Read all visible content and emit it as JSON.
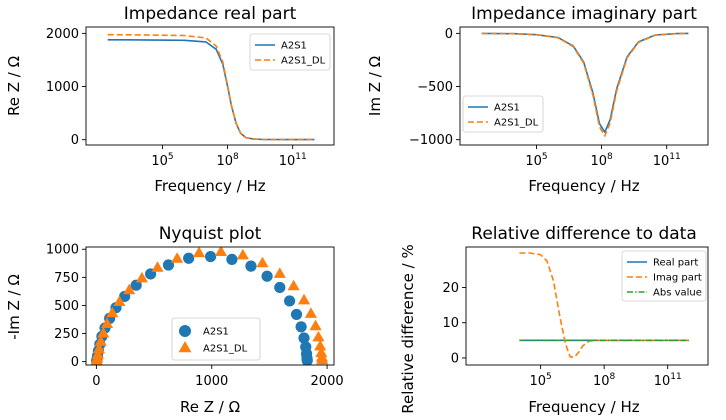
{
  "colors": {
    "blue": "#1f77b4",
    "orange": "#ff7f0e",
    "green": "#2ca02c"
  },
  "chart_data": [
    {
      "id": "real",
      "type": "line",
      "title": "Impedance real part",
      "xlabel": "Frequency / Hz",
      "ylabel": "Re Z / Ω",
      "xscale": "log",
      "xlim": [
        30,
        8000000000000.0
      ],
      "ylim": [
        -100,
        2120
      ],
      "xticks": [
        {
          "v": 100000.0,
          "base": "10",
          "exp": "5"
        },
        {
          "v": 100000000.0,
          "base": "10",
          "exp": "8"
        },
        {
          "v": 100000000000.0,
          "base": "10",
          "exp": "11"
        }
      ],
      "yticks": [
        {
          "v": 0,
          "label": "0"
        },
        {
          "v": 1000,
          "label": "1000"
        },
        {
          "v": 2000,
          "label": "2000"
        }
      ],
      "legend": {
        "position": "top-right",
        "entries": [
          "A2S1",
          "A2S1_DL"
        ]
      },
      "series": [
        {
          "name": "A2S1",
          "style": "solid",
          "color": "#1f77b4",
          "x": [
            300,
            10000.0,
            1000000.0,
            10000000.0,
            30000000.0,
            60000000.0,
            100000000.0,
            150000000.0,
            250000000.0,
            400000000.0,
            700000000.0,
            1500000000.0,
            5000000000.0,
            100000000000.0,
            1000000000000.0
          ],
          "y": [
            1880,
            1878,
            1870,
            1840,
            1700,
            1420,
            1000,
            640,
            300,
            120,
            40,
            12,
            3,
            1,
            1
          ]
        },
        {
          "name": "A2S1_DL",
          "style": "dashed",
          "color": "#ff7f0e",
          "x": [
            300,
            10000.0,
            1000000.0,
            10000000.0,
            30000000.0,
            60000000.0,
            100000000.0,
            150000000.0,
            250000000.0,
            400000000.0,
            700000000.0,
            1500000000.0,
            5000000000.0,
            100000000000.0,
            1000000000000.0
          ],
          "y": [
            1975,
            1972,
            1960,
            1915,
            1760,
            1460,
            1020,
            650,
            305,
            122,
            40,
            12,
            3,
            1,
            1
          ]
        }
      ]
    },
    {
      "id": "imag",
      "type": "line",
      "title": "Impedance imaginary part",
      "xlabel": "Frequency / Hz",
      "ylabel": "Im Z / Ω",
      "xscale": "log",
      "xlim": [
        30,
        8000000000000.0
      ],
      "ylim": [
        -1050,
        60
      ],
      "xticks": [
        {
          "v": 100000.0,
          "base": "10",
          "exp": "5"
        },
        {
          "v": 100000000.0,
          "base": "10",
          "exp": "8"
        },
        {
          "v": 100000000000.0,
          "base": "10",
          "exp": "11"
        }
      ],
      "yticks": [
        {
          "v": 0,
          "label": "0"
        },
        {
          "v": -500,
          "label": "−500"
        },
        {
          "v": -1000,
          "label": "−1000"
        }
      ],
      "legend": {
        "position": "lower-left",
        "entries": [
          "A2S1",
          "A2S1_DL"
        ]
      },
      "series": [
        {
          "name": "A2S1",
          "style": "solid",
          "color": "#1f77b4",
          "x": [
            300,
            10000.0,
            100000.0,
            1000000.0,
            5000000.0,
            15000000.0,
            40000000.0,
            80000000.0,
            140000000.0,
            250000000.0,
            500000000.0,
            1500000000.0,
            5000000000.0,
            30000000000.0,
            300000000000.0,
            1000000000000.0
          ],
          "y": [
            0,
            -3,
            -12,
            -40,
            -120,
            -270,
            -560,
            -850,
            -930,
            -810,
            -520,
            -220,
            -80,
            -15,
            -2,
            0
          ]
        },
        {
          "name": "A2S1_DL",
          "style": "dashed",
          "color": "#ff7f0e",
          "x": [
            300,
            10000.0,
            100000.0,
            1000000.0,
            5000000.0,
            15000000.0,
            40000000.0,
            80000000.0,
            140000000.0,
            250000000.0,
            500000000.0,
            1500000000.0,
            5000000000.0,
            30000000000.0,
            300000000000.0,
            1000000000000.0
          ],
          "y": [
            0,
            -3,
            -12,
            -42,
            -125,
            -280,
            -580,
            -880,
            -965,
            -840,
            -540,
            -230,
            -85,
            -16,
            -2,
            0
          ]
        }
      ]
    },
    {
      "id": "nyquist",
      "type": "scatter",
      "title": "Nyquist plot",
      "xlabel": "Re Z / Ω",
      "ylabel": "-Im Z / Ω",
      "xlim": [
        -90,
        2060
      ],
      "ylim": [
        -30,
        1020
      ],
      "xticks": [
        {
          "v": 0,
          "label": "0"
        },
        {
          "v": 1000,
          "label": "1000"
        },
        {
          "v": 2000,
          "label": "2000"
        }
      ],
      "yticks": [
        {
          "v": 0,
          "label": "0"
        },
        {
          "v": 250,
          "label": "250"
        },
        {
          "v": 500,
          "label": "500"
        },
        {
          "v": 750,
          "label": "750"
        },
        {
          "v": 1000,
          "label": "1000"
        }
      ],
      "legend": {
        "position": "lower-center",
        "entries": [
          "A2S1",
          "A2S1_DL"
        ]
      },
      "series": [
        {
          "name": "A2S1",
          "marker": "circle",
          "color": "#1f77b4",
          "x": [
            2,
            5,
            10,
            18,
            30,
            48,
            75,
            115,
            170,
            245,
            345,
            470,
            625,
            800,
            990,
            1175,
            1340,
            1480,
            1590,
            1675,
            1735,
            1775,
            1800,
            1815,
            1822,
            1826,
            1828
          ],
          "y": [
            4,
            20,
            50,
            95,
            155,
            225,
            300,
            385,
            480,
            580,
            680,
            780,
            860,
            920,
            935,
            910,
            850,
            760,
            660,
            540,
            420,
            310,
            210,
            130,
            70,
            30,
            10
          ]
        },
        {
          "name": "A2S1_DL",
          "marker": "triangle",
          "color": "#ff7f0e",
          "x": [
            3,
            7,
            13,
            23,
            38,
            60,
            92,
            138,
            200,
            285,
            395,
            530,
            700,
            890,
            1080,
            1270,
            1440,
            1590,
            1710,
            1800,
            1860,
            1900,
            1925,
            1940,
            1950,
            1955,
            1958
          ],
          "y": [
            5,
            25,
            60,
            110,
            175,
            250,
            335,
            430,
            530,
            635,
            740,
            835,
            915,
            965,
            975,
            945,
            875,
            780,
            670,
            545,
            425,
            315,
            215,
            135,
            75,
            35,
            12
          ]
        }
      ]
    },
    {
      "id": "reldiff",
      "type": "line",
      "title": "Relative difference to data",
      "xlabel": "Frequency / Hz",
      "ylabel": "Relative difference / %",
      "xscale": "log",
      "xlim": [
        30,
        8000000000000.0
      ],
      "ylim": [
        -2,
        31.5
      ],
      "xticks": [
        {
          "v": 100000.0,
          "base": "10",
          "exp": "5"
        },
        {
          "v": 100000000.0,
          "base": "10",
          "exp": "8"
        },
        {
          "v": 100000000000.0,
          "base": "10",
          "exp": "11"
        }
      ],
      "yticks": [
        {
          "v": 0,
          "label": "0"
        },
        {
          "v": 10,
          "label": "10"
        },
        {
          "v": 20,
          "label": "20"
        }
      ],
      "legend": {
        "position": "top-right",
        "entries": [
          "Real part",
          "Imag part",
          "Abs value"
        ]
      },
      "series": [
        {
          "name": "Real part",
          "style": "solid",
          "color": "#1f77b4",
          "x": [
            10000.0,
            1000000000000.0
          ],
          "y": [
            5,
            5
          ]
        },
        {
          "name": "Imag part",
          "style": "dashed",
          "color": "#ff7f0e",
          "x": [
            10000.0,
            30000.0,
            100000.0,
            200000.0,
            400000.0,
            800000.0,
            1500000.0,
            2500000.0,
            4000000.0,
            6000000.0,
            10000000.0,
            20000000.0,
            50000000.0,
            200000000.0,
            1000000000000.0
          ],
          "y": [
            29.8,
            29.8,
            29.3,
            27.5,
            22,
            12,
            4,
            0.3,
            0.3,
            1.5,
            3.5,
            4.8,
            5,
            5,
            5
          ]
        },
        {
          "name": "Abs value",
          "style": "dashdot",
          "color": "#2ca02c",
          "x": [
            10000.0,
            1000000000000.0
          ],
          "y": [
            5,
            5
          ]
        }
      ]
    }
  ]
}
